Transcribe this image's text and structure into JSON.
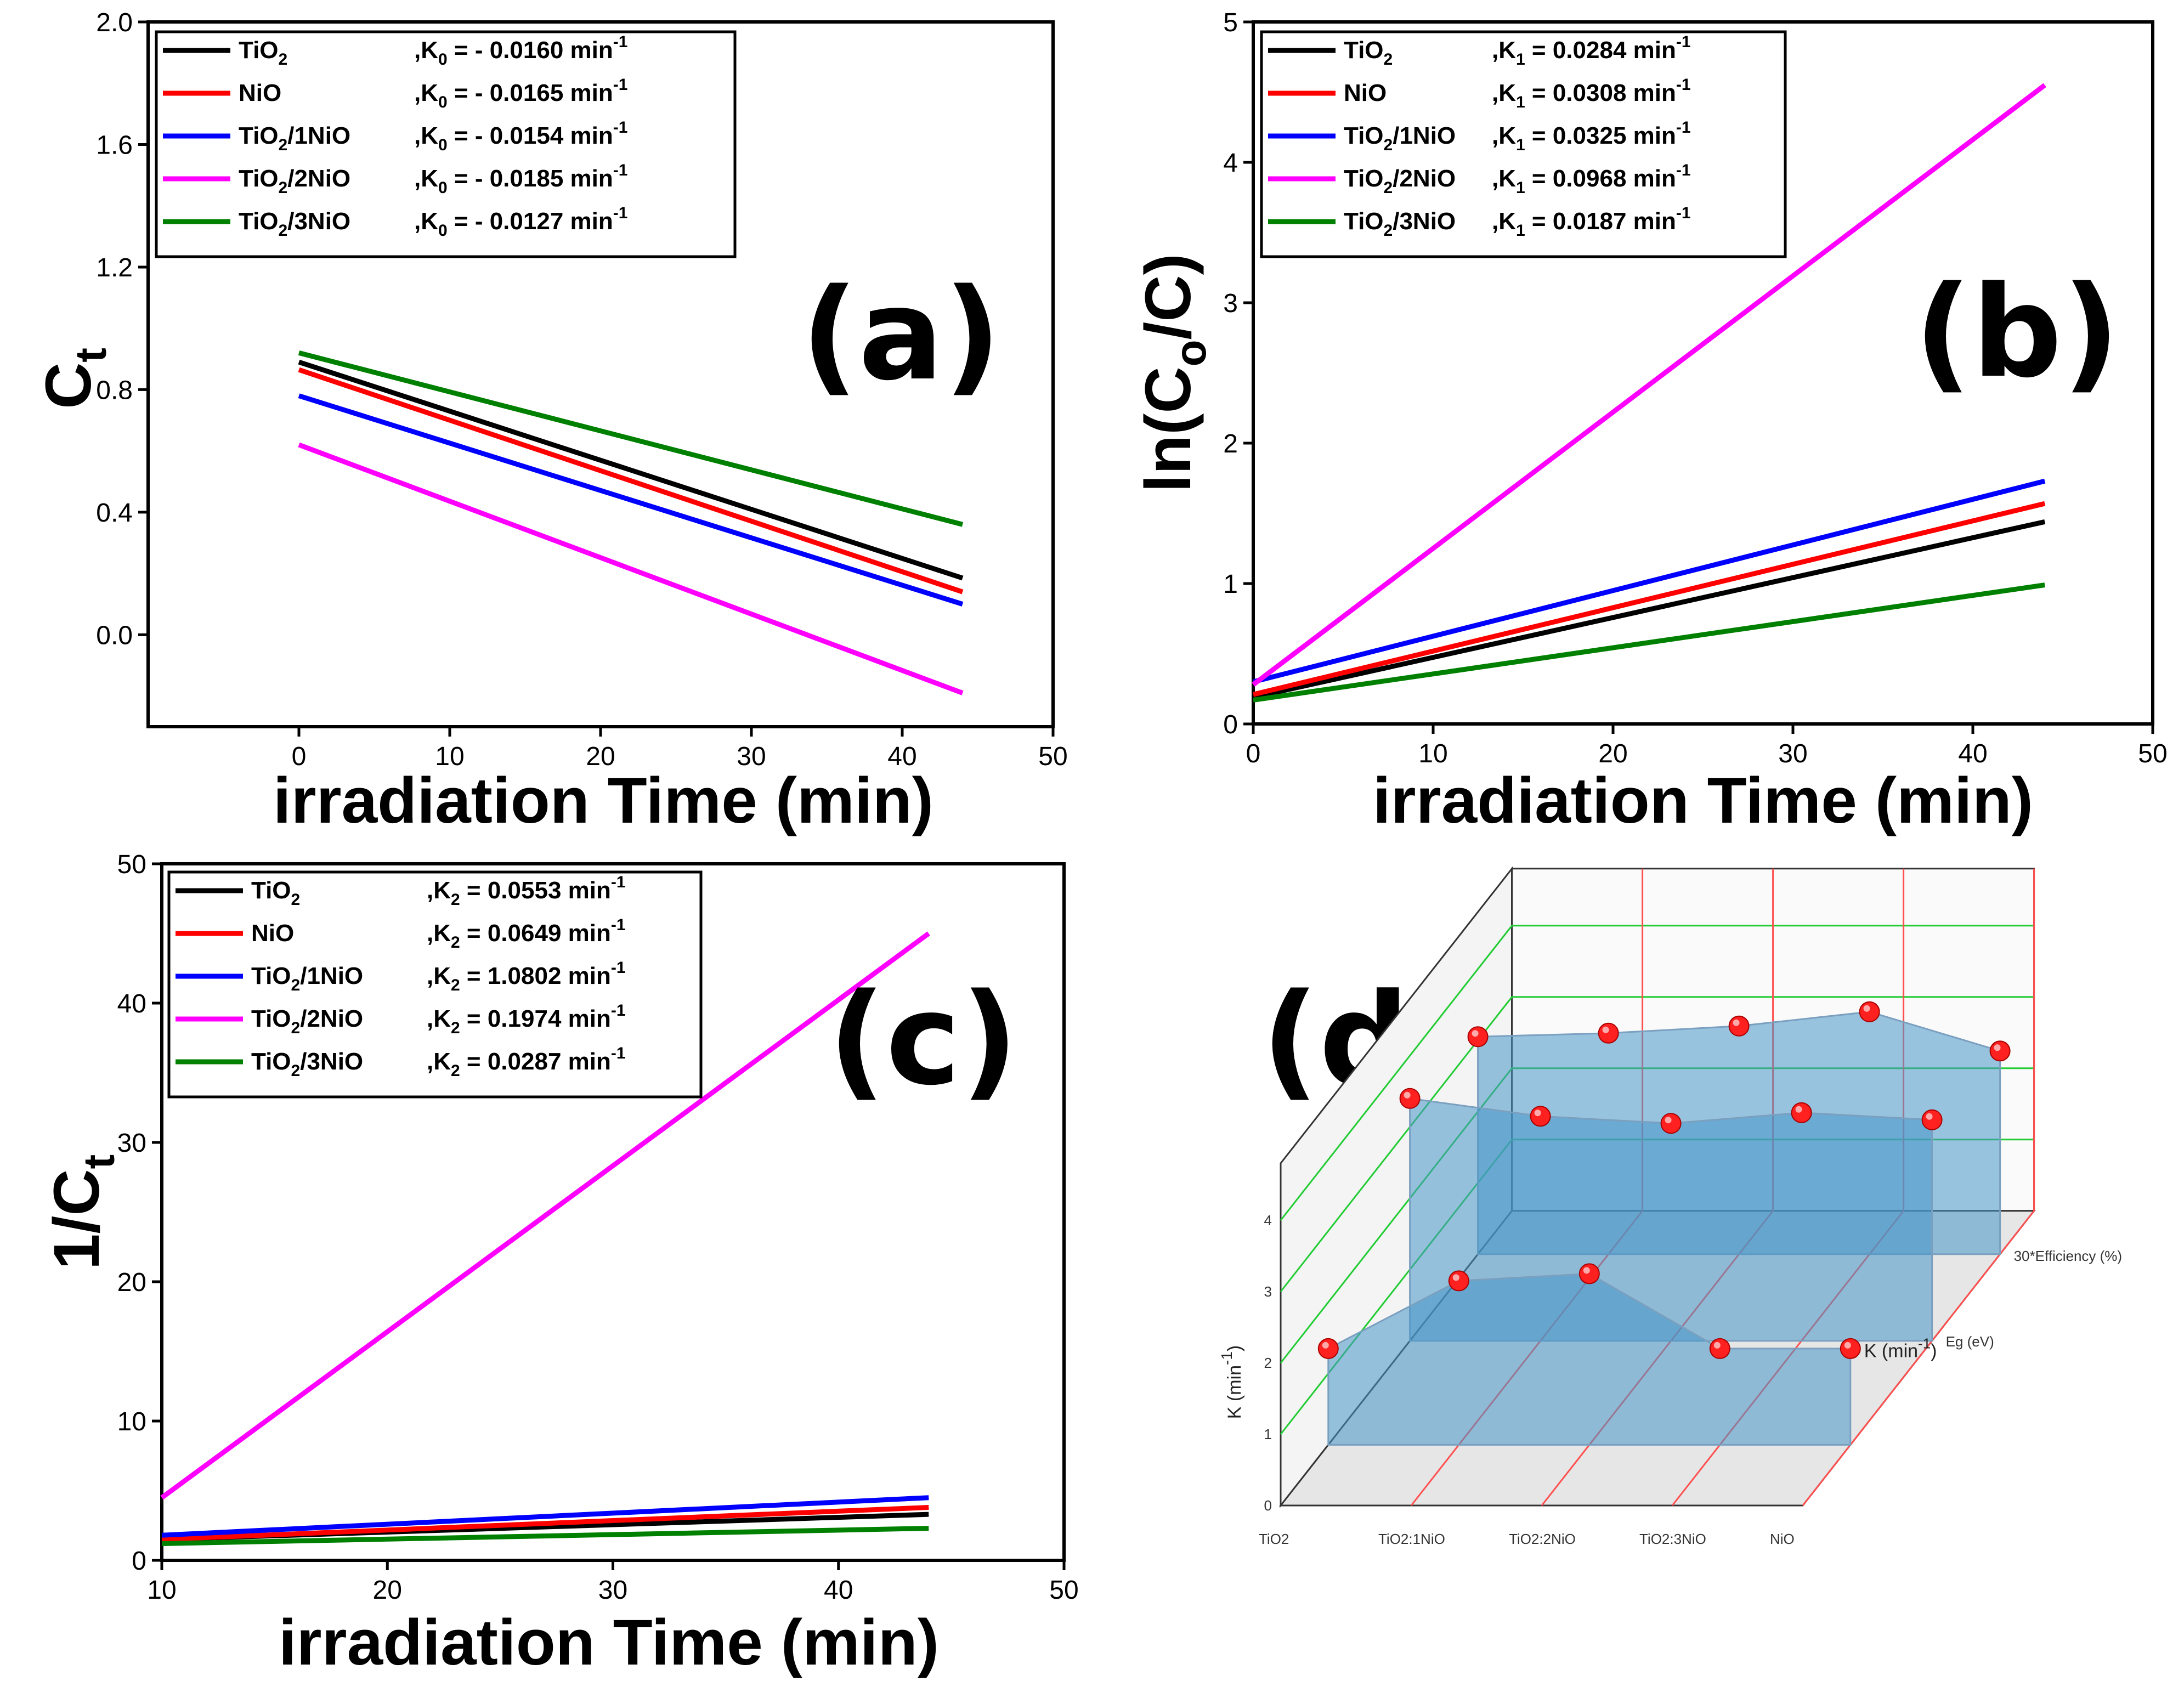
{
  "chart_data": [
    {
      "panel": "(a)",
      "type": "line",
      "xlabel": "irradiation Time (min)",
      "ylabel": "C",
      "ylabel_sub": "t",
      "xlim": [
        -10,
        50
      ],
      "ylim": [
        -0.3,
        2.0
      ],
      "xticks": [
        "0",
        "10",
        "20",
        "30",
        "40",
        "50"
      ],
      "yticks": [
        "0.0",
        "0.4",
        "0.8",
        "1.2",
        "1.6",
        "2.0"
      ],
      "series": [
        {
          "name": "TiO2",
          "k_label": "K",
          "k_sub": "0",
          "k_value": "= - 0.0160",
          "unit": "min",
          "unit_sup": "-1",
          "color": "#000000",
          "x": [
            0,
            44
          ],
          "y": [
            0.89,
            0.185
          ]
        },
        {
          "name": "NiO",
          "k_label": "K",
          "k_sub": "0",
          "k_value": "= - 0.0165",
          "unit": "min",
          "unit_sup": "-1",
          "color": "#ff0000",
          "x": [
            0,
            44
          ],
          "y": [
            0.865,
            0.14
          ]
        },
        {
          "name": "TiO2/1NiO",
          "k_label": "K",
          "k_sub": "0",
          "k_value": "= - 0.0154",
          "unit": "min",
          "unit_sup": "-1",
          "color": "#0000ff",
          "x": [
            0,
            44
          ],
          "y": [
            0.78,
            0.1
          ]
        },
        {
          "name": "TiO2/2NiO",
          "k_label": "K",
          "k_sub": "0",
          "k_value": "= - 0.0185",
          "unit": "min",
          "unit_sup": "-1",
          "color": "#ff00ff",
          "x": [
            0,
            44
          ],
          "y": [
            0.62,
            -0.19
          ]
        },
        {
          "name": "TiO2/3NiO",
          "k_label": "K",
          "k_sub": "0",
          "k_value": "= - 0.0127",
          "unit": "min",
          "unit_sup": "-1",
          "color": "#008000",
          "x": [
            0,
            44
          ],
          "y": [
            0.92,
            0.36
          ]
        }
      ]
    },
    {
      "panel": "(b)",
      "type": "line",
      "xlabel": "irradiation Time (min)",
      "ylabel": "ln(C",
      "ylabel_sub": "o",
      "ylabel_end": "/C)",
      "xlim": [
        0,
        50
      ],
      "ylim": [
        0,
        5
      ],
      "xticks": [
        "0",
        "10",
        "20",
        "30",
        "40",
        "50"
      ],
      "yticks": [
        "0",
        "1",
        "2",
        "3",
        "4",
        "5"
      ],
      "series": [
        {
          "name": "TiO2",
          "k_label": "K",
          "k_sub": "1",
          "k_value": "= 0.0284",
          "unit": "min",
          "unit_sup": "-1",
          "color": "#000000",
          "x": [
            0,
            44
          ],
          "y": [
            0.19,
            1.44
          ]
        },
        {
          "name": "NiO",
          "k_label": "K",
          "k_sub": "1",
          "k_value": "= 0.0308",
          "unit": "min",
          "unit_sup": "-1",
          "color": "#ff0000",
          "x": [
            0,
            44
          ],
          "y": [
            0.21,
            1.57
          ]
        },
        {
          "name": "TiO2/1NiO",
          "k_label": "K",
          "k_sub": "1",
          "k_value": "= 0.0325",
          "unit": "min",
          "unit_sup": "-1",
          "color": "#0000ff",
          "x": [
            0,
            44
          ],
          "y": [
            0.3,
            1.73
          ]
        },
        {
          "name": "TiO2/2NiO",
          "k_label": "K",
          "k_sub": "1",
          "k_value": "= 0.0968",
          "unit": "min",
          "unit_sup": "-1",
          "color": "#ff00ff",
          "x": [
            0,
            44
          ],
          "y": [
            0.28,
            4.55
          ]
        },
        {
          "name": "TiO2/3NiO",
          "k_label": "K",
          "k_sub": "1",
          "k_value": "= 0.0187",
          "unit": "min",
          "unit_sup": "-1",
          "color": "#008000",
          "x": [
            0,
            44
          ],
          "y": [
            0.17,
            0.99
          ]
        }
      ]
    },
    {
      "panel": "(c)",
      "type": "line",
      "xlabel": "irradiation Time (min)",
      "ylabel": "1/C",
      "ylabel_sub": "t",
      "xlim": [
        10,
        50
      ],
      "ylim": [
        0,
        50
      ],
      "xticks": [
        "10",
        "20",
        "30",
        "40",
        "50"
      ],
      "yticks": [
        "0",
        "10",
        "20",
        "30",
        "40",
        "50"
      ],
      "series": [
        {
          "name": "TiO2",
          "k_label": "K",
          "k_sub": "2",
          "k_value": "= 0.0553",
          "unit": "min",
          "unit_sup": "-1",
          "color": "#000000",
          "x": [
            10,
            44
          ],
          "y": [
            1.5,
            3.3
          ]
        },
        {
          "name": "NiO",
          "k_label": "K",
          "k_sub": "2",
          "k_value": "= 0.0649",
          "unit": "min",
          "unit_sup": "-1",
          "color": "#ff0000",
          "x": [
            10,
            44
          ],
          "y": [
            1.5,
            3.8
          ]
        },
        {
          "name": "TiO2/1NiO",
          "k_label": "K",
          "k_sub": "2",
          "k_value": "= 1.0802",
          "unit": "min",
          "unit_sup": "-1",
          "color": "#0000ff",
          "x": [
            10,
            44
          ],
          "y": [
            1.8,
            4.5
          ]
        },
        {
          "name": "TiO2/2NiO",
          "k_label": "K",
          "k_sub": "2",
          "k_value": "= 0.1974",
          "unit": "min",
          "unit_sup": "-1",
          "color": "#ff00ff",
          "x": [
            10,
            44
          ],
          "y": [
            4.5,
            45.0
          ]
        },
        {
          "name": "TiO2/3NiO",
          "k_label": "K",
          "k_sub": "2",
          "k_value": "= 0.0287",
          "unit": "min",
          "unit_sup": "-1",
          "color": "#008000",
          "x": [
            10,
            44
          ],
          "y": [
            1.2,
            2.3
          ]
        }
      ]
    },
    {
      "panel": "(d)",
      "type": "area",
      "categories": [
        "TiO2",
        "TiO2:1NiO",
        "TiO2:2NiO",
        "TiO2:3NiO",
        "NiO"
      ],
      "series_labels": [
        "K (min",
        "Eg (eV)",
        "30*Efficiency (%)"
      ],
      "k_sup": "-1",
      "ylabel": "K (min",
      "ylabel_sup": "-1",
      "yticks": [
        "0",
        "1",
        "2",
        "3",
        "4"
      ],
      "series": [
        {
          "name": "K",
          "values": [
            1.35,
            2.3,
            2.4,
            1.35,
            1.35
          ]
        },
        {
          "name": "Eg",
          "values": [
            3.4,
            3.15,
            3.05,
            3.2,
            3.1
          ]
        },
        {
          "name": "30*Efficiency",
          "values": [
            3.05,
            3.1,
            3.2,
            3.4,
            2.85
          ]
        }
      ]
    }
  ]
}
